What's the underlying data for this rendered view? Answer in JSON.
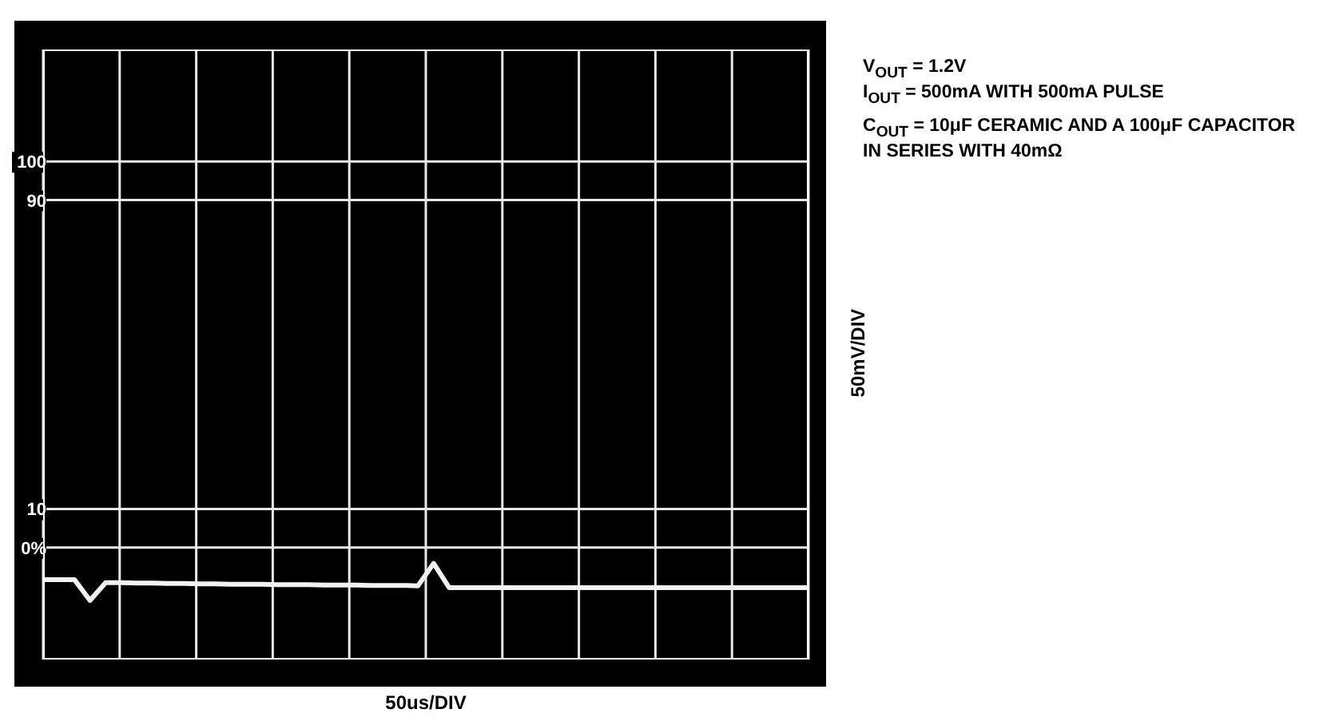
{
  "chart_data": {
    "type": "line",
    "xlabel": "50us/DIV",
    "ylabel": "50mV/DIV",
    "annotations": [
      "V$_{OUT}$ = 1.2V",
      "I$_{OUT}$ = 500mA WITH 500mA PULSE",
      "C$_{OUT}$ = 10μF CERAMIC AND A 100μF CAPACITOR IN SERIES WITH 40mΩ"
    ],
    "categories": [
      null,
      null,
      null,
      null,
      null,
      null,
      null,
      null,
      null,
      null,
      null,
      null,
      null,
      null,
      null,
      null,
      null,
      null,
      null,
      null,
      null,
      null,
      null,
      null,
      null,
      null,
      null,
      null,
      null,
      null,
      null,
      null,
      null,
      null,
      null,
      null,
      null,
      null,
      null,
      null,
      null,
      null,
      null,
      null,
      null,
      null,
      null,
      null,
      null,
      null
    ],
    "series": [
      {
        "color": "#f2f2f2",
        "values": [
          -8.3,
          -8.3,
          -8.3,
          -13.7,
          -9.1,
          -9.1,
          -9.2,
          -9.2,
          -9.3,
          -9.3,
          -9.4,
          -9.4,
          -9.5,
          -9.5,
          -9.5,
          -9.6,
          -9.6,
          -9.6,
          -9.7,
          -9.7,
          -9.7,
          -9.8,
          -9.8,
          -9.8,
          -9.9,
          -4.1,
          -10.4,
          -10.4,
          -10.4,
          -10.4,
          -10.4,
          -10.4,
          -10.4,
          -10.4,
          -10.4,
          -10.4,
          -10.4,
          -10.4,
          -10.4,
          -10.4,
          -10.4,
          -10.4,
          -10.4,
          -10.4,
          -10.4,
          -10.4,
          -10.4,
          -10.4,
          -10.4,
          -10.4
        ]
      }
    ],
    "ylim": [
      -29,
      129
    ],
    "yticks": [
      {
        "value": 0,
        "label": "0%"
      },
      10,
      90,
      100
    ],
    "grid": true,
    "marker": "none",
    "line_style": "solid"
  }
}
